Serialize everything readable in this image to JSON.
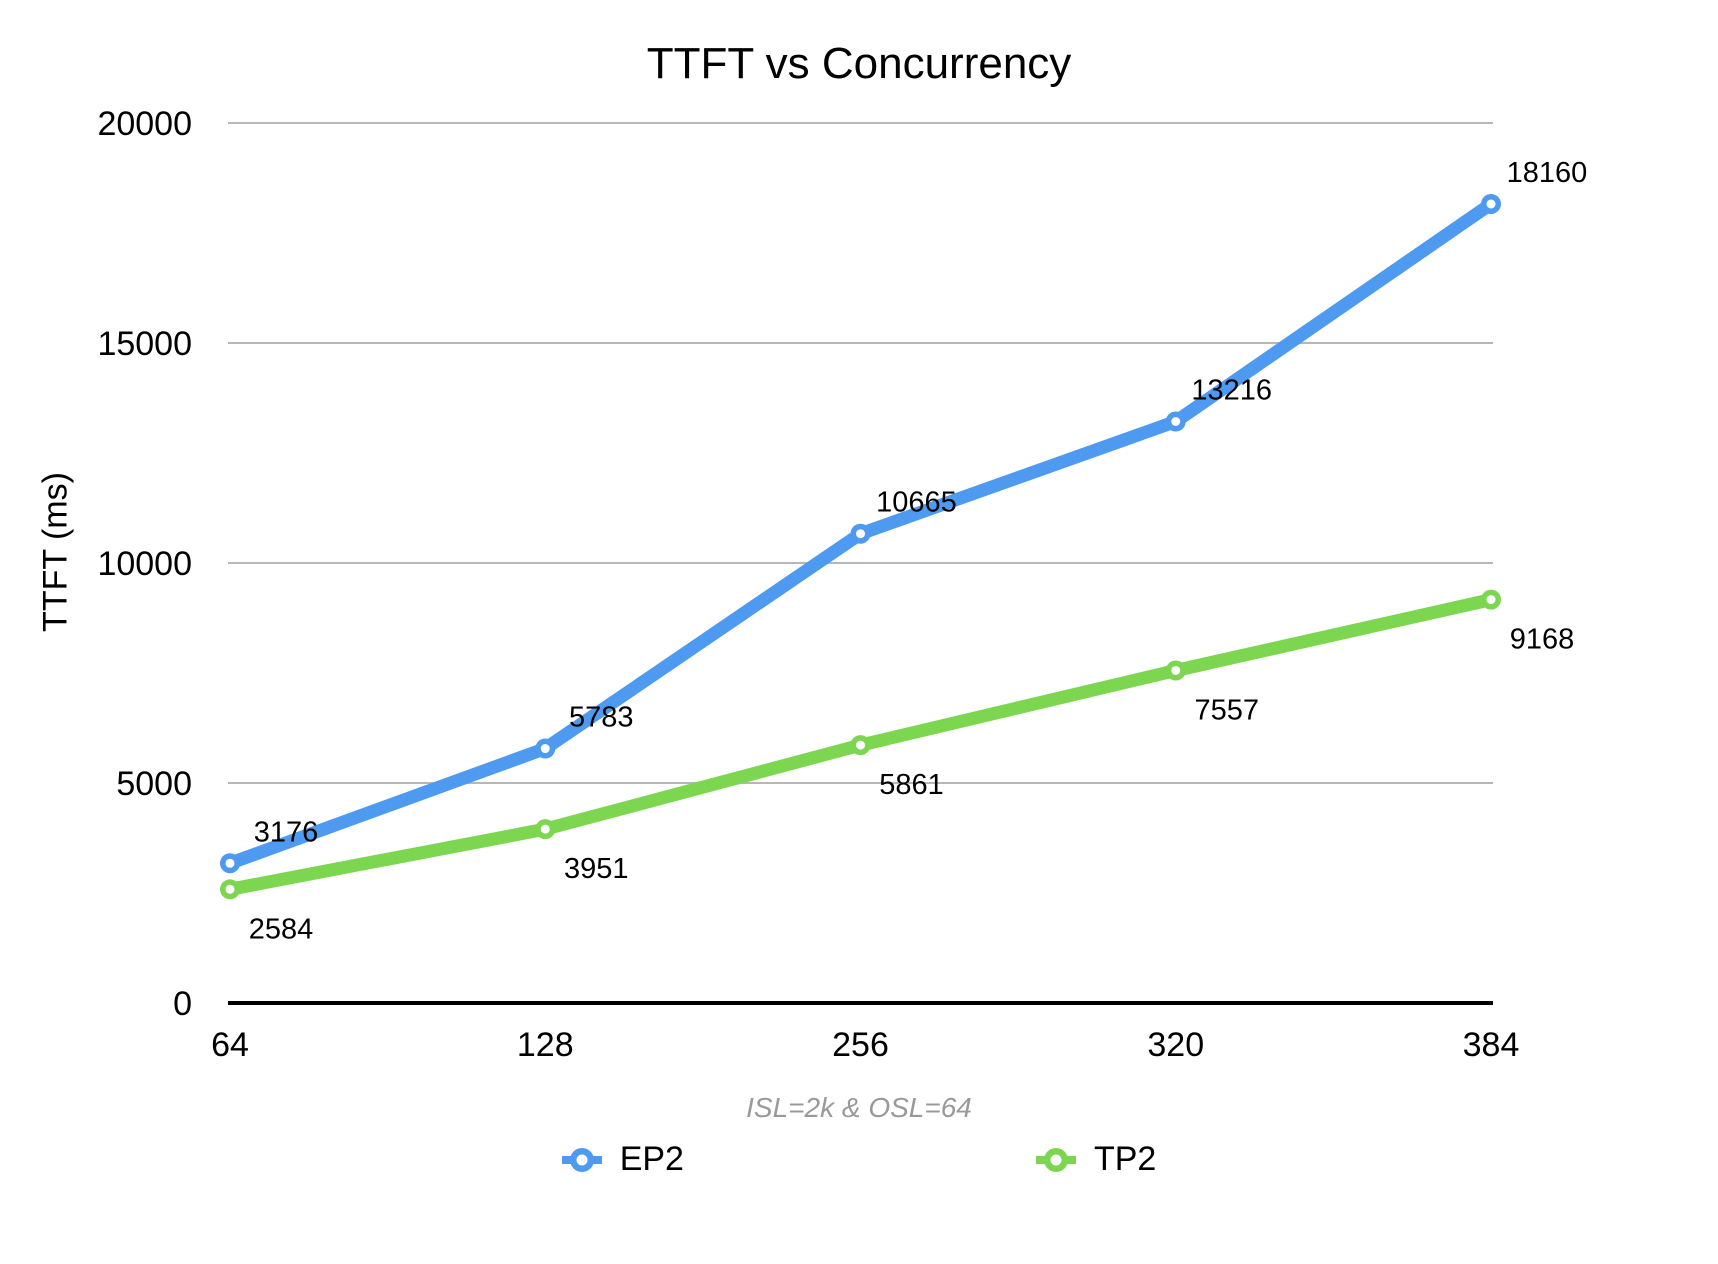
{
  "chart_data": {
    "type": "line",
    "title": "TTFT vs Concurrency",
    "ylabel": "TTFT (ms)",
    "xlabel_annotation": "ISL=2k & OSL=64",
    "categories": [
      "64",
      "128",
      "256",
      "320",
      "384"
    ],
    "series": [
      {
        "name": "EP2",
        "color": "#4d9af0",
        "values": [
          3176,
          5783,
          10665,
          13216,
          18160
        ],
        "label_offset": {
          "dx": 56,
          "dy": -32
        }
      },
      {
        "name": "TP2",
        "color": "#7cd650",
        "values": [
          2584,
          3951,
          5861,
          7557,
          9168
        ],
        "label_offset": {
          "dx": 51,
          "dy": 39
        }
      }
    ],
    "ylim": [
      0,
      20000
    ],
    "yticks": [
      0,
      5000,
      10000,
      15000,
      20000
    ],
    "grid": "horizontal",
    "legend_position": "bottom",
    "axis_color": "#000000",
    "gridline_color": "#b7b7b7",
    "annotation_color": "#999999"
  }
}
